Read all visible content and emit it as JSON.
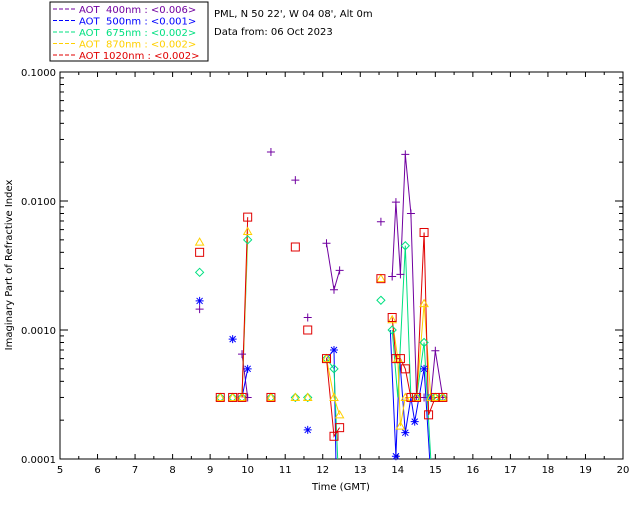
{
  "header": {
    "site": "PML, N 50 22', W 04 08', Alt 0m",
    "date": "Data from: 06 Oct 2023"
  },
  "chart_data": {
    "type": "scatter",
    "title": "",
    "xlabel": "Time (GMT)",
    "ylabel": "Imaginary Part of Refractive Index",
    "xlim": [
      5,
      20
    ],
    "ylim": [
      0.0001,
      0.1
    ],
    "yscale": "log",
    "x_ticks": [
      "5",
      "6",
      "7",
      "8",
      "9",
      "10",
      "11",
      "12",
      "13",
      "14",
      "15",
      "16",
      "17",
      "18",
      "19",
      "20"
    ],
    "y_ticks": [
      "0.0001",
      "0.0010",
      "0.0100",
      "0.1000"
    ],
    "grid": false,
    "legend_position": "top-left",
    "series": [
      {
        "name": "AOT  400nm : <0.006>",
        "color": "#7000a0",
        "marker": "plus",
        "points": [
          [
            8.72,
            0.00145
          ],
          [
            9.85,
            0.00065
          ],
          [
            10.0,
            0.0003
          ],
          [
            10.62,
            0.024
          ],
          [
            11.27,
            0.0145
          ],
          [
            11.6,
            0.00125
          ],
          [
            12.1,
            0.0047
          ],
          [
            12.3,
            0.00205
          ],
          [
            12.45,
            0.0029
          ],
          [
            13.55,
            0.0069
          ],
          [
            13.85,
            0.0026
          ],
          [
            13.95,
            0.0098
          ],
          [
            14.07,
            0.0027
          ],
          [
            14.2,
            0.023
          ],
          [
            14.35,
            0.008
          ],
          [
            14.5,
            0.0003
          ],
          [
            14.7,
            0.0003
          ],
          [
            14.88,
            0.0003
          ],
          [
            15.0,
            0.00069
          ],
          [
            15.2,
            0.0003
          ]
        ],
        "segments": [
          [
            [
              9.85,
              0.00065
            ],
            [
              10.0,
              0.0003
            ]
          ],
          [
            [
              12.1,
              0.0047
            ],
            [
              12.3,
              0.00205
            ],
            [
              12.45,
              0.0029
            ]
          ],
          [
            [
              13.85,
              0.0026
            ],
            [
              13.95,
              0.0098
            ],
            [
              14.07,
              0.0027
            ],
            [
              14.2,
              0.023
            ],
            [
              14.35,
              0.008
            ],
            [
              14.5,
              0.0003
            ],
            [
              14.7,
              0.0003
            ],
            [
              14.88,
              0.0003
            ],
            [
              15.0,
              0.00069
            ],
            [
              15.2,
              0.0003
            ]
          ]
        ]
      },
      {
        "name": "AOT  500nm : <0.001>",
        "color": "#0000ff",
        "marker": "asterisk",
        "points": [
          [
            8.72,
            0.00168
          ],
          [
            9.6,
            0.00085
          ],
          [
            10.0,
            0.0005
          ],
          [
            11.6,
            0.000168
          ],
          [
            12.3,
            0.0007
          ],
          [
            13.95,
            0.000105
          ],
          [
            14.2,
            0.00016
          ],
          [
            14.45,
            0.000195
          ],
          [
            14.7,
            0.0005
          ],
          [
            14.88,
            0.0003
          ]
        ],
        "segments": [
          [
            [
              9.85,
              0.0003
            ],
            [
              10.0,
              0.0005
            ]
          ],
          [
            [
              12.1,
              0.0006
            ],
            [
              12.3,
              0.0007
            ],
            [
              12.35,
              0.0001
            ]
          ],
          [
            [
              13.8,
              0.001
            ],
            [
              13.95,
              0.000105
            ],
            [
              14.05,
              0.0006
            ],
            [
              14.2,
              0.00016
            ],
            [
              14.35,
              0.0003
            ],
            [
              14.45,
              0.000195
            ],
            [
              14.7,
              0.0005
            ],
            [
              14.85,
              0.0001
            ]
          ]
        ]
      },
      {
        "name": "AOT  675nm : <0.002>",
        "color": "#00e080",
        "marker": "diamond",
        "points": [
          [
            8.72,
            0.0028
          ],
          [
            9.27,
            0.0003
          ],
          [
            9.6,
            0.0003
          ],
          [
            9.85,
            0.0003
          ],
          [
            10.0,
            0.005
          ],
          [
            10.62,
            0.0003
          ],
          [
            11.27,
            0.0003
          ],
          [
            11.6,
            0.0003
          ],
          [
            12.1,
            0.0006
          ],
          [
            12.3,
            0.0005
          ],
          [
            13.55,
            0.0017
          ],
          [
            13.85,
            0.001
          ],
          [
            14.2,
            0.0045
          ],
          [
            14.5,
            0.0003
          ],
          [
            14.7,
            0.0008
          ],
          [
            14.88,
            0.0003
          ],
          [
            15.0,
            0.0003
          ],
          [
            15.2,
            0.0003
          ]
        ],
        "segments": [
          [
            [
              9.85,
              0.0003
            ],
            [
              10.0,
              0.005
            ]
          ],
          [
            [
              12.1,
              0.0006
            ],
            [
              12.3,
              0.0005
            ],
            [
              12.4,
              0.0001
            ]
          ],
          [
            [
              13.85,
              0.001
            ],
            [
              14.0,
              0.0003
            ],
            [
              14.2,
              0.0045
            ],
            [
              14.35,
              0.0003
            ],
            [
              14.5,
              0.0003
            ],
            [
              14.7,
              0.0008
            ],
            [
              14.88,
              0.0001
            ]
          ]
        ]
      },
      {
        "name": "AOT  870nm : <0.002>",
        "color": "#ffd000",
        "marker": "triangle",
        "points": [
          [
            8.72,
            0.0048
          ],
          [
            9.27,
            0.0003
          ],
          [
            9.6,
            0.0003
          ],
          [
            9.85,
            0.0003
          ],
          [
            10.0,
            0.0058
          ],
          [
            10.62,
            0.0003
          ],
          [
            11.27,
            0.0003
          ],
          [
            11.6,
            0.0003
          ],
          [
            12.1,
            0.0006
          ],
          [
            12.3,
            0.0003
          ],
          [
            12.45,
            0.00022
          ],
          [
            13.55,
            0.0025
          ],
          [
            13.85,
            0.0012
          ],
          [
            14.0,
            0.0006
          ],
          [
            14.07,
            0.00018
          ],
          [
            14.2,
            0.0003
          ],
          [
            14.5,
            0.0003
          ],
          [
            14.7,
            0.0016
          ],
          [
            14.88,
            0.0003
          ],
          [
            15.0,
            0.0003
          ],
          [
            15.2,
            0.0003
          ]
        ],
        "segments": [
          [
            [
              9.85,
              0.0003
            ],
            [
              10.0,
              0.0058
            ]
          ],
          [
            [
              12.1,
              0.0006
            ],
            [
              12.3,
              0.0003
            ],
            [
              12.45,
              0.00022
            ]
          ],
          [
            [
              13.85,
              0.0012
            ],
            [
              14.0,
              0.0006
            ],
            [
              14.07,
              0.00018
            ],
            [
              14.2,
              0.0003
            ],
            [
              14.35,
              0.0003
            ],
            [
              14.5,
              0.0003
            ],
            [
              14.7,
              0.0016
            ],
            [
              14.88,
              0.0003
            ],
            [
              15.0,
              0.0003
            ],
            [
              15.2,
              0.0003
            ]
          ]
        ]
      },
      {
        "name": "AOT 1020nm : <0.002>",
        "color": "#e00000",
        "marker": "square",
        "points": [
          [
            8.72,
            0.004
          ],
          [
            9.27,
            0.0003
          ],
          [
            9.6,
            0.0003
          ],
          [
            9.85,
            0.0003
          ],
          [
            10.0,
            0.0075
          ],
          [
            10.62,
            0.0003
          ],
          [
            11.27,
            0.0044
          ],
          [
            11.6,
            0.001
          ],
          [
            12.1,
            0.0006
          ],
          [
            12.3,
            0.00015
          ],
          [
            12.45,
            0.000175
          ],
          [
            13.55,
            0.0025
          ],
          [
            13.85,
            0.00125
          ],
          [
            13.95,
            0.0006
          ],
          [
            14.07,
            0.0006
          ],
          [
            14.2,
            0.0005
          ],
          [
            14.35,
            0.0003
          ],
          [
            14.5,
            0.0003
          ],
          [
            14.7,
            0.0057
          ],
          [
            14.82,
            0.00022
          ],
          [
            15.0,
            0.0003
          ],
          [
            15.2,
            0.0003
          ]
        ],
        "segments": [
          [
            [
              9.85,
              0.0003
            ],
            [
              10.0,
              0.0075
            ]
          ],
          [
            [
              12.1,
              0.0006
            ],
            [
              12.3,
              0.00015
            ],
            [
              12.45,
              0.000175
            ]
          ],
          [
            [
              13.85,
              0.00125
            ],
            [
              13.95,
              0.0006
            ],
            [
              14.07,
              0.0006
            ],
            [
              14.2,
              0.0005
            ],
            [
              14.35,
              0.0003
            ],
            [
              14.5,
              0.0003
            ],
            [
              14.7,
              0.0057
            ],
            [
              14.82,
              0.00022
            ],
            [
              15.0,
              0.0003
            ],
            [
              15.2,
              0.0003
            ]
          ]
        ]
      }
    ]
  }
}
